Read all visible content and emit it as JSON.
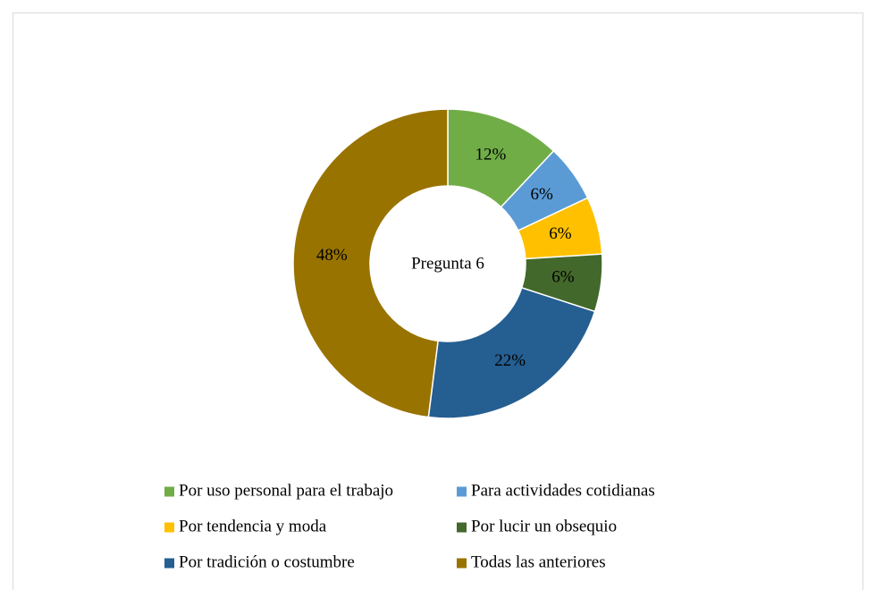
{
  "chart_data": {
    "type": "pie",
    "title": "Pregunta 6",
    "categories": [
      "Por uso personal para el trabajo",
      "Para actividades cotidianas",
      "Por tendencia y moda",
      "Por lucir un obsequio",
      "Por tradición o costumbre",
      "Todas las anteriores"
    ],
    "values": [
      12,
      6,
      6,
      6,
      22,
      48
    ],
    "value_labels": [
      "12%",
      "6%",
      "6%",
      "6%",
      "22%",
      "48%"
    ],
    "colors": [
      "#70ad47",
      "#5b9bd5",
      "#ffc000",
      "#43682b",
      "#255e91",
      "#997300"
    ],
    "legend": "bottom"
  }
}
